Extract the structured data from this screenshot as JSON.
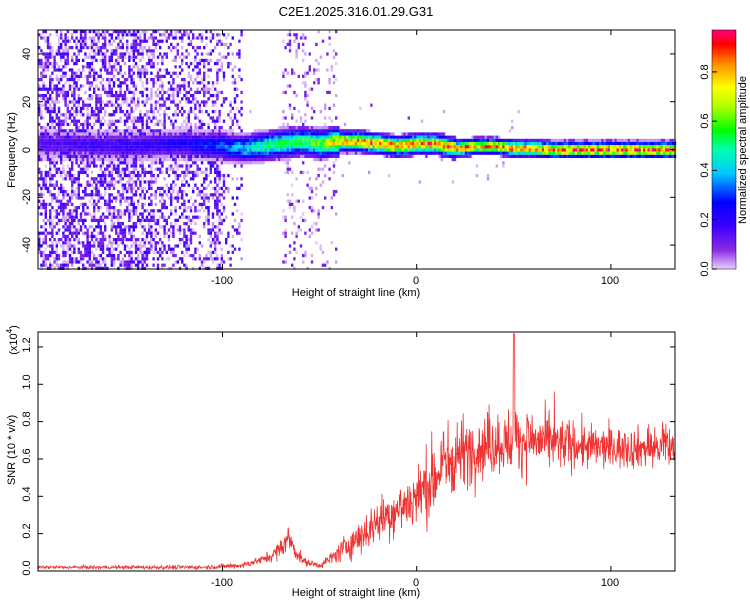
{
  "chart_data": [
    {
      "type": "heatmap",
      "title": "C2E1.2025.316.01.29.G31",
      "xlabel": "Height of straight line (km)",
      "ylabel": "Frequency (Hz)",
      "xlim": [
        -195,
        133
      ],
      "ylim": [
        -50,
        50
      ],
      "x_ticks": [
        -100,
        0,
        100
      ],
      "x_tick_labels": [
        "-100",
        "0",
        "100"
      ],
      "y_ticks": [
        -40,
        -20,
        0,
        20,
        40
      ],
      "y_tick_labels": [
        "-40",
        "-20",
        "0",
        "20",
        "40"
      ],
      "colorbar": {
        "label": "Normalized spectral amplitude",
        "range": [
          0,
          0.97
        ],
        "ticks": [
          0.0,
          0.2,
          0.4,
          0.6,
          0.8
        ],
        "tick_labels": [
          "0.0",
          "0.2",
          "0.4",
          "0.6",
          "0.8"
        ],
        "colors": [
          "#e8d0ff",
          "#8a2be2",
          "#3a00ff",
          "#0000ff",
          "#00c8ff",
          "#00ffb0",
          "#00ff00",
          "#b0ff00",
          "#ffff00",
          "#ff9900",
          "#ff0000",
          "#ff0080"
        ]
      },
      "ridge": {
        "x": [
          -195,
          -150,
          -120,
          -100,
          -90,
          -80,
          -70,
          -60,
          -50,
          -40,
          -30,
          -20,
          -10,
          0,
          10,
          20,
          30,
          40,
          50,
          60,
          70,
          80,
          90,
          100,
          110,
          120,
          133
        ],
        "freq": [
          3,
          2,
          3,
          2,
          1,
          2,
          3,
          4,
          3,
          4,
          4,
          3,
          2,
          3,
          3,
          1,
          2,
          2,
          1,
          1,
          0.5,
          0.5,
          0.5,
          0.5,
          0.5,
          0.5,
          0.5
        ],
        "peak_amplitude": [
          0.15,
          0.2,
          0.25,
          0.35,
          0.45,
          0.55,
          0.6,
          0.6,
          0.7,
          0.85,
          0.9,
          0.92,
          0.9,
          0.93,
          0.92,
          0.9,
          0.88,
          0.9,
          0.92,
          0.93,
          0.94,
          0.95,
          0.95,
          0.95,
          0.95,
          0.96,
          0.96
        ]
      }
    },
    {
      "type": "line",
      "xlabel": "Height of straight line (km)",
      "ylabel": "SNR (10 * v/v)",
      "y_scale_label": "(x10",
      "y_scale_exp": "4",
      "y_scale_close": ")",
      "xlim": [
        -195,
        133
      ],
      "ylim": [
        0,
        1.28
      ],
      "x_ticks": [
        -100,
        0,
        100
      ],
      "x_tick_labels": [
        "-100",
        "0",
        "100"
      ],
      "y_ticks": [
        0.0,
        0.2,
        0.4,
        0.6,
        0.8,
        1.0,
        1.2
      ],
      "y_tick_labels": [
        "0.0",
        "0.2",
        "0.4",
        "0.6",
        "0.8",
        "1.0",
        "1.2"
      ],
      "color": "#ee3333",
      "envelope": {
        "x": [
          -195,
          -160,
          -130,
          -110,
          -100,
          -90,
          -80,
          -75,
          -70,
          -66,
          -62,
          -58,
          -54,
          -50,
          -45,
          -40,
          -35,
          -30,
          -25,
          -20,
          -15,
          -10,
          -5,
          0,
          5,
          10,
          15,
          20,
          25,
          30,
          40,
          50,
          60,
          70,
          80,
          90,
          100,
          110,
          120,
          133
        ],
        "mean": [
          0.02,
          0.02,
          0.02,
          0.02,
          0.025,
          0.03,
          0.06,
          0.08,
          0.12,
          0.18,
          0.1,
          0.05,
          0.04,
          0.03,
          0.06,
          0.1,
          0.14,
          0.18,
          0.22,
          0.27,
          0.3,
          0.33,
          0.36,
          0.4,
          0.46,
          0.52,
          0.58,
          0.62,
          0.64,
          0.66,
          0.68,
          0.7,
          0.7,
          0.68,
          0.68,
          0.66,
          0.66,
          0.66,
          0.66,
          0.66
        ],
        "spread": [
          0.008,
          0.008,
          0.01,
          0.01,
          0.012,
          0.015,
          0.02,
          0.03,
          0.05,
          0.06,
          0.04,
          0.02,
          0.015,
          0.015,
          0.03,
          0.05,
          0.07,
          0.09,
          0.1,
          0.11,
          0.12,
          0.13,
          0.14,
          0.15,
          0.18,
          0.2,
          0.2,
          0.18,
          0.17,
          0.16,
          0.15,
          0.16,
          0.15,
          0.13,
          0.12,
          0.11,
          0.1,
          0.1,
          0.1,
          0.1
        ]
      }
    }
  ]
}
